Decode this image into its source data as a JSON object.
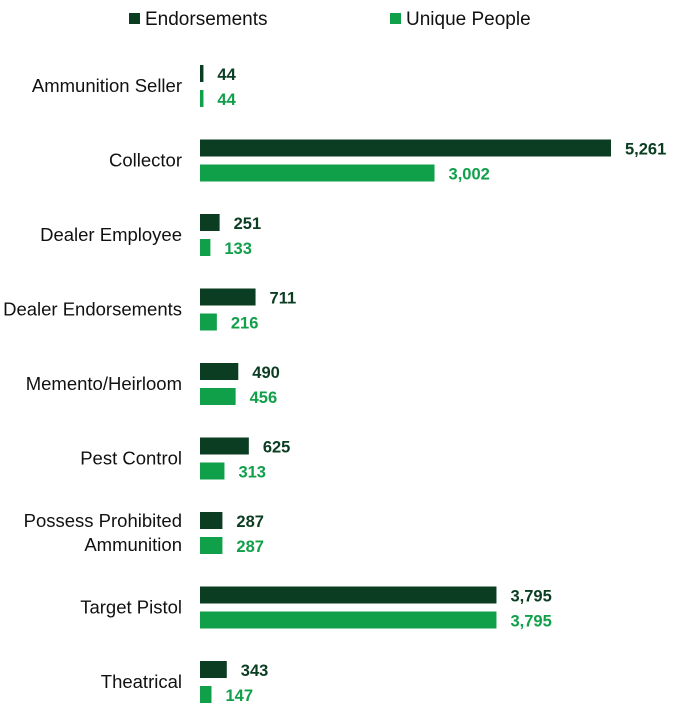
{
  "chart_data": {
    "type": "bar",
    "orientation": "horizontal",
    "title": "",
    "xlabel": "",
    "ylabel": "",
    "legend_position": "top",
    "grid": false,
    "xlim": [
      0,
      5261
    ],
    "categories": [
      "Ammunition Seller",
      "Collector",
      "Dealer Employee",
      "Dealer Endorsements",
      "Memento/Heirloom",
      "Pest Control",
      "Possess Prohibited Ammunition",
      "Target Pistol",
      "Theatrical"
    ],
    "series": [
      {
        "name": "Endorsements",
        "color": "#0b3d22",
        "values": [
          44,
          5261,
          251,
          711,
          490,
          625,
          287,
          3795,
          343
        ],
        "labels": [
          "44",
          "5,261",
          "251",
          "711",
          "490",
          "625",
          "287",
          "3,795",
          "343"
        ]
      },
      {
        "name": "Unique People",
        "color": "#10a04a",
        "values": [
          44,
          3002,
          133,
          216,
          456,
          313,
          287,
          3795,
          147
        ],
        "labels": [
          "44",
          "3,002",
          "133",
          "216",
          "456",
          "313",
          "287",
          "3,795",
          "147"
        ]
      }
    ]
  }
}
